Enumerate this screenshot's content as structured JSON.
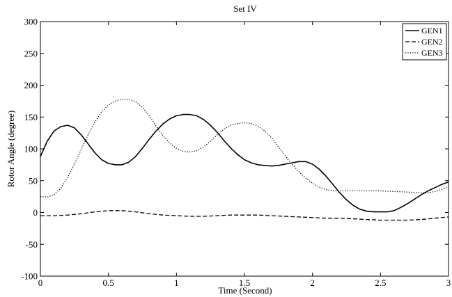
{
  "chart_data": {
    "type": "line",
    "title": "Set IV",
    "xlabel": "Time (Second)",
    "ylabel": "Rotor Angle (degree)",
    "xlim": [
      0,
      3
    ],
    "ylim": [
      -100,
      300
    ],
    "xticks": [
      "0",
      "0.5",
      "1",
      "1.5",
      "2",
      "2.5",
      "3"
    ],
    "yticks": [
      "-100",
      "-50",
      "0",
      "50",
      "100",
      "150",
      "200",
      "250",
      "300"
    ],
    "grid": false,
    "legend_position": "top-right",
    "series": [
      {
        "name": "GEN1",
        "style": "solid",
        "points": [
          [
            0,
            88
          ],
          [
            0.05,
            112
          ],
          [
            0.1,
            128
          ],
          [
            0.15,
            135
          ],
          [
            0.2,
            137
          ],
          [
            0.25,
            133
          ],
          [
            0.3,
            122
          ],
          [
            0.35,
            108
          ],
          [
            0.4,
            94
          ],
          [
            0.45,
            83
          ],
          [
            0.5,
            77
          ],
          [
            0.55,
            75
          ],
          [
            0.6,
            75
          ],
          [
            0.65,
            79
          ],
          [
            0.7,
            88
          ],
          [
            0.75,
            101
          ],
          [
            0.8,
            115
          ],
          [
            0.85,
            128
          ],
          [
            0.9,
            139
          ],
          [
            0.95,
            147
          ],
          [
            1.0,
            152
          ],
          [
            1.05,
            154
          ],
          [
            1.1,
            154
          ],
          [
            1.15,
            152
          ],
          [
            1.2,
            146
          ],
          [
            1.25,
            137
          ],
          [
            1.3,
            126
          ],
          [
            1.35,
            113
          ],
          [
            1.4,
            101
          ],
          [
            1.45,
            91
          ],
          [
            1.5,
            83
          ],
          [
            1.55,
            78
          ],
          [
            1.6,
            75
          ],
          [
            1.65,
            74
          ],
          [
            1.7,
            73
          ],
          [
            1.75,
            74
          ],
          [
            1.8,
            76
          ],
          [
            1.85,
            78
          ],
          [
            1.9,
            80
          ],
          [
            1.95,
            80
          ],
          [
            2.0,
            76
          ],
          [
            2.05,
            68
          ],
          [
            2.1,
            57
          ],
          [
            2.15,
            44
          ],
          [
            2.2,
            31
          ],
          [
            2.25,
            20
          ],
          [
            2.3,
            11
          ],
          [
            2.35,
            5
          ],
          [
            2.4,
            2
          ],
          [
            2.45,
            1
          ],
          [
            2.5,
            1
          ],
          [
            2.55,
            1
          ],
          [
            2.6,
            3
          ],
          [
            2.65,
            8
          ],
          [
            2.7,
            14
          ],
          [
            2.75,
            21
          ],
          [
            2.8,
            28
          ],
          [
            2.85,
            34
          ],
          [
            2.9,
            39
          ],
          [
            2.95,
            44
          ],
          [
            3.0,
            48
          ]
        ]
      },
      {
        "name": "GEN2",
        "style": "dashed",
        "points": [
          [
            0,
            -5
          ],
          [
            0.1,
            -5
          ],
          [
            0.2,
            -4
          ],
          [
            0.3,
            -2
          ],
          [
            0.4,
            1
          ],
          [
            0.5,
            3
          ],
          [
            0.6,
            3
          ],
          [
            0.7,
            1
          ],
          [
            0.8,
            -2
          ],
          [
            0.9,
            -4
          ],
          [
            1.0,
            -5
          ],
          [
            1.1,
            -6
          ],
          [
            1.2,
            -6
          ],
          [
            1.3,
            -5
          ],
          [
            1.4,
            -4
          ],
          [
            1.5,
            -4
          ],
          [
            1.6,
            -4
          ],
          [
            1.7,
            -5
          ],
          [
            1.8,
            -6
          ],
          [
            1.9,
            -7
          ],
          [
            2.0,
            -8
          ],
          [
            2.1,
            -9
          ],
          [
            2.2,
            -9
          ],
          [
            2.3,
            -10
          ],
          [
            2.4,
            -11
          ],
          [
            2.5,
            -12
          ],
          [
            2.6,
            -12
          ],
          [
            2.7,
            -12
          ],
          [
            2.8,
            -11
          ],
          [
            2.9,
            -9
          ],
          [
            3.0,
            -7
          ]
        ]
      },
      {
        "name": "GEN3",
        "style": "dotted",
        "points": [
          [
            0,
            25
          ],
          [
            0.05,
            24
          ],
          [
            0.1,
            28
          ],
          [
            0.15,
            38
          ],
          [
            0.2,
            55
          ],
          [
            0.25,
            76
          ],
          [
            0.3,
            99
          ],
          [
            0.35,
            122
          ],
          [
            0.4,
            142
          ],
          [
            0.45,
            158
          ],
          [
            0.5,
            169
          ],
          [
            0.55,
            175
          ],
          [
            0.6,
            178
          ],
          [
            0.65,
            178
          ],
          [
            0.7,
            174
          ],
          [
            0.75,
            165
          ],
          [
            0.8,
            152
          ],
          [
            0.85,
            136
          ],
          [
            0.9,
            121
          ],
          [
            0.95,
            109
          ],
          [
            1.0,
            101
          ],
          [
            1.05,
            96
          ],
          [
            1.1,
            95
          ],
          [
            1.15,
            97
          ],
          [
            1.2,
            103
          ],
          [
            1.25,
            112
          ],
          [
            1.3,
            122
          ],
          [
            1.35,
            131
          ],
          [
            1.4,
            137
          ],
          [
            1.45,
            140
          ],
          [
            1.5,
            141
          ],
          [
            1.55,
            140
          ],
          [
            1.6,
            136
          ],
          [
            1.65,
            128
          ],
          [
            1.7,
            117
          ],
          [
            1.75,
            103
          ],
          [
            1.8,
            89
          ],
          [
            1.85,
            76
          ],
          [
            1.9,
            64
          ],
          [
            1.95,
            54
          ],
          [
            2.0,
            46
          ],
          [
            2.05,
            40
          ],
          [
            2.1,
            36
          ],
          [
            2.15,
            34
          ],
          [
            2.2,
            34
          ],
          [
            2.3,
            34
          ],
          [
            2.4,
            34
          ],
          [
            2.5,
            34
          ],
          [
            2.6,
            33
          ],
          [
            2.7,
            32
          ],
          [
            2.8,
            31
          ],
          [
            2.85,
            31
          ],
          [
            2.9,
            33
          ],
          [
            2.95,
            36
          ],
          [
            3.0,
            40
          ]
        ]
      }
    ]
  }
}
